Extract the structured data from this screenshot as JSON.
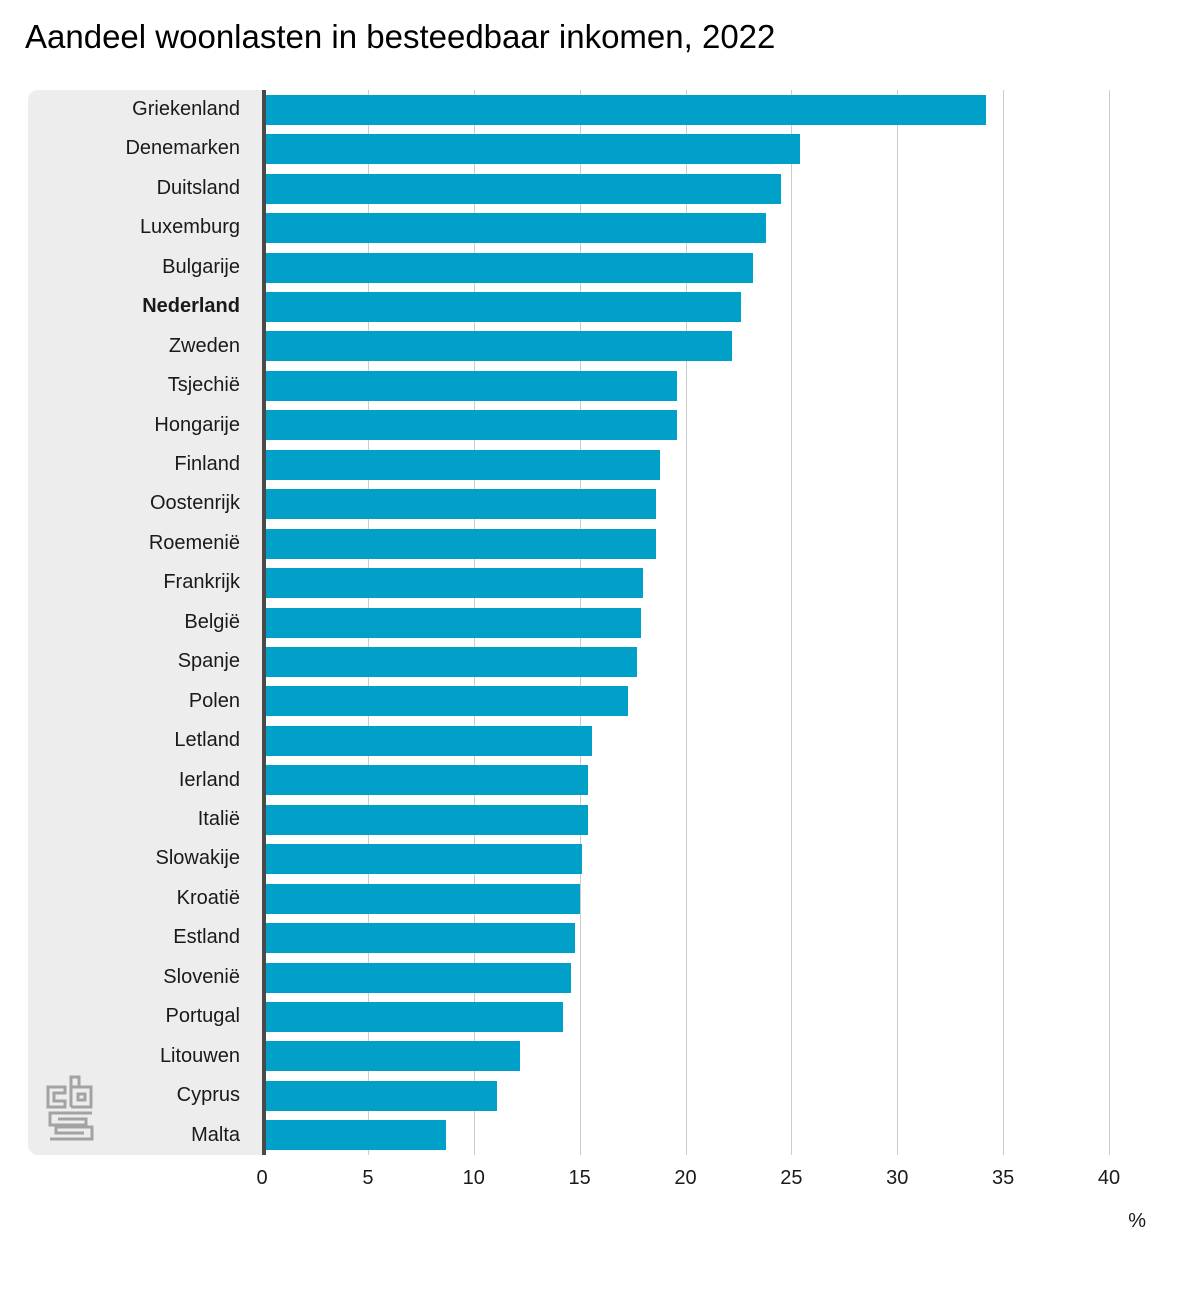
{
  "title": "Aandeel woonlasten in besteedbaar inkomen, 2022",
  "chart_data": {
    "type": "bar",
    "orientation": "horizontal",
    "title": "Aandeel woonlasten in besteedbaar inkomen, 2022",
    "xlabel": "%",
    "xlim": [
      0,
      43.2
    ],
    "x_ticks": [
      0,
      5,
      10,
      15,
      20,
      25,
      30,
      35,
      40
    ],
    "grid": "vertical-gridlines",
    "legend": "none",
    "bar_color": "#00a0c8",
    "axis_line_color": "#4a4a4a",
    "label_panel_color": "#ededed",
    "highlight_category": "Nederland",
    "categories": [
      "Griekenland",
      "Denemarken",
      "Duitsland",
      "Luxemburg",
      "Bulgarije",
      "Nederland",
      "Zweden",
      "Tsjechië",
      "Hongarije",
      "Finland",
      "Oostenrijk",
      "Roemenië",
      "Frankrijk",
      "België",
      "Spanje",
      "Polen",
      "Letland",
      "Ierland",
      "Italië",
      "Slowakije",
      "Kroatië",
      "Estland",
      "Slovenië",
      "Portugal",
      "Litouwen",
      "Cyprus",
      "Malta"
    ],
    "values": [
      34.2,
      25.4,
      24.5,
      23.8,
      23.2,
      22.6,
      22.2,
      19.6,
      19.6,
      18.8,
      18.6,
      18.6,
      18.0,
      17.9,
      17.7,
      17.3,
      15.6,
      15.4,
      15.4,
      15.1,
      15.0,
      14.8,
      14.6,
      14.2,
      12.2,
      11.1,
      8.7
    ]
  },
  "logo": {
    "name": "cbs-logo"
  }
}
